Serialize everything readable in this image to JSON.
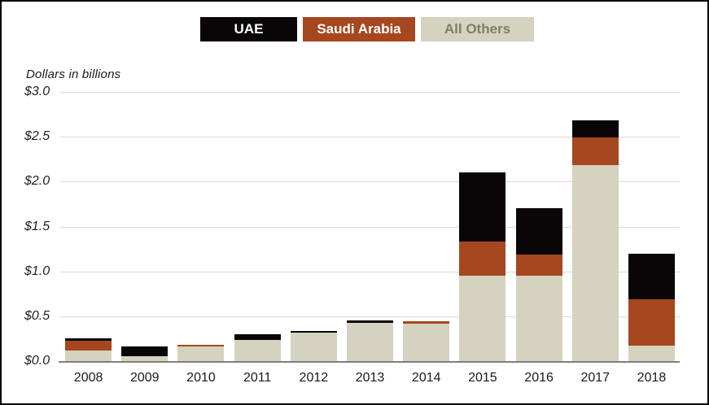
{
  "colors": {
    "background": "#ffffff",
    "frame_border": "#000000",
    "gridline": "#d9d9d9",
    "axis_line": "#7f7f7f",
    "tick_text": "#1f1f1f"
  },
  "axis_note": "Dollars in billions",
  "legend": {
    "items": [
      {
        "label": "UAE",
        "color": "#0a0607",
        "text_color": "#ffffff"
      },
      {
        "label": "Saudi Arabia",
        "color": "#a6471f",
        "text_color": "#ffffff"
      },
      {
        "label": "All Others",
        "color": "#d5d2bf",
        "text_color": "#7f7d6c"
      }
    ]
  },
  "chart_data": {
    "type": "bar",
    "stacked": true,
    "title": "",
    "xlabel": "",
    "ylabel": "Dollars in billions",
    "ylim": [
      0,
      3.0
    ],
    "grid": true,
    "legend_position": "top",
    "categories": [
      "2008",
      "2009",
      "2010",
      "2011",
      "2012",
      "2013",
      "2014",
      "2015",
      "2016",
      "2017",
      "2018"
    ],
    "series": [
      {
        "name": "UAE",
        "color": "#0a0607",
        "values": [
          0.02,
          0.11,
          0.0,
          0.06,
          0.02,
          0.02,
          0.0,
          0.77,
          0.51,
          0.19,
          0.51
        ]
      },
      {
        "name": "Saudi Arabia",
        "color": "#a6471f",
        "values": [
          0.11,
          0.0,
          0.02,
          0.0,
          0.0,
          0.0,
          0.02,
          0.38,
          0.24,
          0.31,
          0.52
        ]
      },
      {
        "name": "All Others",
        "color": "#d5d2bf",
        "values": [
          0.12,
          0.05,
          0.16,
          0.24,
          0.32,
          0.43,
          0.42,
          0.95,
          0.95,
          2.18,
          0.17
        ]
      }
    ],
    "y_ticks": [
      {
        "label": "$3.0",
        "value": 3.0
      },
      {
        "label": "$2.5",
        "value": 2.5
      },
      {
        "label": "$2.0",
        "value": 2.0
      },
      {
        "label": "$1.5",
        "value": 1.5
      },
      {
        "label": "$1.0",
        "value": 1.0
      },
      {
        "label": "$0.5",
        "value": 0.5
      },
      {
        "label": "$0.0",
        "value": 0.0
      }
    ]
  }
}
